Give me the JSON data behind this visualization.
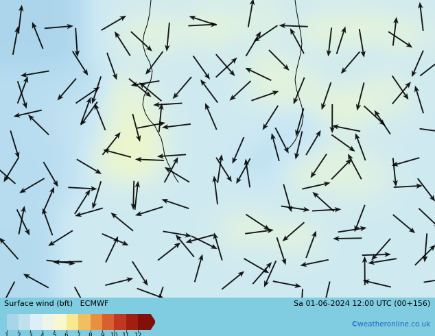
{
  "title_left": "Surface wind (bft)   ECMWF",
  "title_right": "Sa 01-06-2024 12:00 UTC (00+156)",
  "credit": "©weatheronline.co.uk",
  "colorbar_colors": [
    "#aad4e8",
    "#c0e0f0",
    "#dceef8",
    "#eef5e8",
    "#f8f8d0",
    "#f8e890",
    "#f0c060",
    "#e89040",
    "#d86030",
    "#c03820",
    "#a02010",
    "#801008"
  ],
  "map_colors": {
    "sea_base": "#80cce0",
    "land_light_green": "#c8e8a0",
    "land_yellow": "#f0f0a0",
    "purple_patch": "#9090c8",
    "light_cyan": "#a0d8e8",
    "pale_green": "#b8e8b0"
  },
  "fig_width": 6.34,
  "fig_height": 4.9,
  "dpi": 100
}
